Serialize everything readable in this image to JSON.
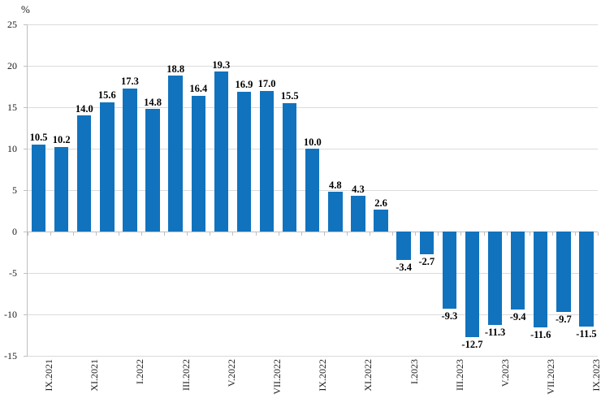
{
  "chart_data": {
    "type": "bar",
    "title": "",
    "xlabel": "",
    "ylabel": "%",
    "ylim": [
      -15,
      25
    ],
    "y_ticks": [
      25,
      20,
      15,
      10,
      5,
      0,
      -5,
      -10,
      -15
    ],
    "grid": true,
    "legend": "none",
    "bar_color": "#1173bd",
    "values": [
      10.5,
      10.2,
      14.0,
      15.6,
      17.3,
      14.8,
      18.8,
      16.4,
      19.3,
      16.9,
      17.0,
      15.5,
      10.0,
      4.8,
      4.3,
      2.6,
      -3.4,
      -2.7,
      -9.3,
      -12.7,
      -11.3,
      -9.4,
      -11.6,
      -9.7,
      -11.5
    ],
    "data_labels": [
      "10.5",
      "10.2",
      "14.0",
      "15.6",
      "17.3",
      "14.8",
      "18.8",
      "16.4",
      "19.3",
      "16.9",
      "17.0",
      "15.5",
      "10.0",
      "4.8",
      "4.3",
      "2.6",
      "-3.4",
      "-2.7",
      "-9.3",
      "-12.7",
      "-11.3",
      "-9.4",
      "-11.6",
      "-9.7",
      "-11.5"
    ],
    "x_tick_labels": [
      "IX.2021",
      "XI.2021",
      "I.2022",
      "III.2022",
      "V.2022",
      "VII.2022",
      "IX.2022",
      "XI.2022",
      "I.2023",
      "III.2023",
      "V.2023",
      "VII.2023",
      "IX.2023"
    ],
    "x_label_every": 2,
    "x_label_start_index": 0
  }
}
